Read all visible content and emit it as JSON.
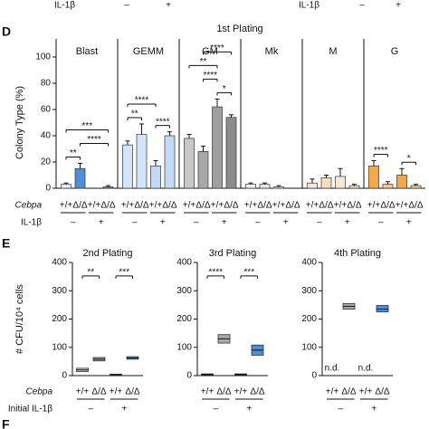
{
  "header": {
    "labels": [
      "IL-1β",
      "–",
      "+",
      "IL-1β",
      "–",
      "+"
    ]
  },
  "panel_labels": [
    "D",
    "E",
    "F"
  ],
  "chart_data": [
    {
      "type": "bar",
      "title": "1st Plating",
      "y_label": "Colony Type (%)",
      "ylim": [
        0,
        100
      ],
      "yticks": [
        0,
        20,
        40,
        60,
        80,
        100
      ],
      "genotype_label": "Cebpa",
      "genotypes": [
        "+/+",
        "Δ/Δ",
        "+/+",
        "Δ/Δ"
      ],
      "treatment_label": "IL-1β",
      "treatments": [
        "–",
        "+"
      ],
      "panels": [
        {
          "name": "Blast",
          "colors": [
            "#e4edf9",
            "#4a90d9",
            "#e4edf9",
            "#4a90d9"
          ],
          "values": [
            3,
            15,
            0,
            1
          ],
          "errors": [
            1,
            4,
            0,
            1
          ],
          "significance": [
            {
              "label": "**",
              "pair": [
                0,
                1
              ]
            },
            {
              "label": "****",
              "pair": [
                1,
                3
              ]
            },
            {
              "label": "***",
              "pair": [
                0,
                3
              ]
            }
          ]
        },
        {
          "name": "GEMM",
          "colors": [
            "#d3e5f8",
            "#d3e5f8",
            "#c3daf4",
            "#c3daf4"
          ],
          "values": [
            33,
            41,
            17,
            40
          ],
          "errors": [
            3,
            8,
            4,
            3
          ],
          "significance": [
            {
              "label": "**",
              "pair": [
                0,
                1
              ]
            },
            {
              "label": "****",
              "pair": [
                2,
                3
              ]
            },
            {
              "label": "****",
              "pair": [
                0,
                2
              ]
            }
          ]
        },
        {
          "name": "GM",
          "colors": [
            "#c8c8c8",
            "#a8a8a8",
            "#a0a0a0",
            "#8c8c8c"
          ],
          "values": [
            38,
            28,
            62,
            54
          ],
          "errors": [
            3,
            4,
            6,
            2
          ],
          "significance": [
            {
              "label": "*",
              "pair": [
                2,
                3
              ]
            },
            {
              "label": "**",
              "pair": [
                0,
                2
              ]
            },
            {
              "label": "****",
              "pair": [
                1,
                2
              ]
            },
            {
              "label": "****",
              "pair": [
                1,
                3
              ]
            }
          ]
        },
        {
          "name": "Mk",
          "colors": [
            "#f2f2f2",
            "#e6e6e6",
            "#f2f2f2",
            "#e6e6e6"
          ],
          "values": [
            3,
            3,
            1,
            0
          ],
          "errors": [
            1,
            1,
            1,
            0
          ]
        },
        {
          "name": "M",
          "colors": [
            "#fbe8d4",
            "#f8dcc0",
            "#fbe8d4",
            "#f8dcc0"
          ],
          "values": [
            4,
            8,
            9,
            2
          ],
          "errors": [
            3,
            2,
            6,
            1
          ]
        },
        {
          "name": "G",
          "colors": [
            "#f5a84a",
            "#f8c88a",
            "#f5a84a",
            "#f8c88a"
          ],
          "values": [
            17,
            3,
            10,
            2
          ],
          "errors": [
            4,
            2,
            5,
            1
          ],
          "significance": [
            {
              "label": "****",
              "pair": [
                0,
                1
              ]
            },
            {
              "label": "*",
              "pair": [
                2,
                3
              ]
            }
          ]
        }
      ]
    },
    {
      "type": "box",
      "title": "2nd Plating",
      "y_label": "# CFU/10⁴ cells",
      "ylim": [
        0,
        400
      ],
      "yticks": [
        0,
        100,
        200,
        300,
        400
      ],
      "genotype_label": "Cebpa",
      "genotypes": [
        "+/+",
        "Δ/Δ",
        "+/+",
        "Δ/Δ"
      ],
      "treatment_label": "Initial IL-1β",
      "treatments": [
        "–",
        "+"
      ],
      "colors": [
        "#d0d0d0",
        "#a8a8a8",
        "#8fb8e8",
        "#5a9be0"
      ],
      "values": [
        20,
        58,
        3,
        62
      ],
      "lower": [
        14,
        52,
        1,
        58
      ],
      "upper": [
        26,
        64,
        5,
        67
      ],
      "significance": [
        {
          "label": "**",
          "pair": [
            0,
            1
          ]
        },
        {
          "label": "***",
          "pair": [
            2,
            3
          ]
        }
      ]
    },
    {
      "type": "box",
      "title": "3rd Plating",
      "ylim": [
        0,
        400
      ],
      "yticks": [
        0,
        100,
        200,
        300,
        400
      ],
      "genotypes": [
        "+/+",
        "Δ/Δ",
        "+/+",
        "Δ/Δ"
      ],
      "treatments": [
        "–",
        "+"
      ],
      "colors": [
        "#555555",
        "#a8a8a8",
        "#7a5a30",
        "#4a90d9"
      ],
      "values": [
        5,
        130,
        5,
        90
      ],
      "lower": [
        4,
        115,
        4,
        72
      ],
      "upper": [
        6,
        145,
        6,
        108
      ],
      "significance": [
        {
          "label": "****",
          "pair": [
            0,
            1
          ]
        },
        {
          "label": "***",
          "pair": [
            2,
            3
          ]
        }
      ]
    },
    {
      "type": "box",
      "title": "4th Plating",
      "ylim": [
        0,
        400
      ],
      "yticks": [
        0,
        100,
        200,
        300,
        400
      ],
      "genotypes": [
        "+/+",
        "Δ/Δ",
        "+/+",
        "Δ/Δ"
      ],
      "treatments": [
        "–",
        "+"
      ],
      "colors": [
        "#d0d0d0",
        "#a8a8a8",
        "#8fb8e8",
        "#4a90d9"
      ],
      "values": [
        null,
        245,
        null,
        235
      ],
      "lower": [
        null,
        235,
        null,
        225
      ],
      "upper": [
        null,
        255,
        null,
        248
      ],
      "value_labels": [
        "n.d.",
        null,
        "n.d.",
        null
      ]
    }
  ]
}
